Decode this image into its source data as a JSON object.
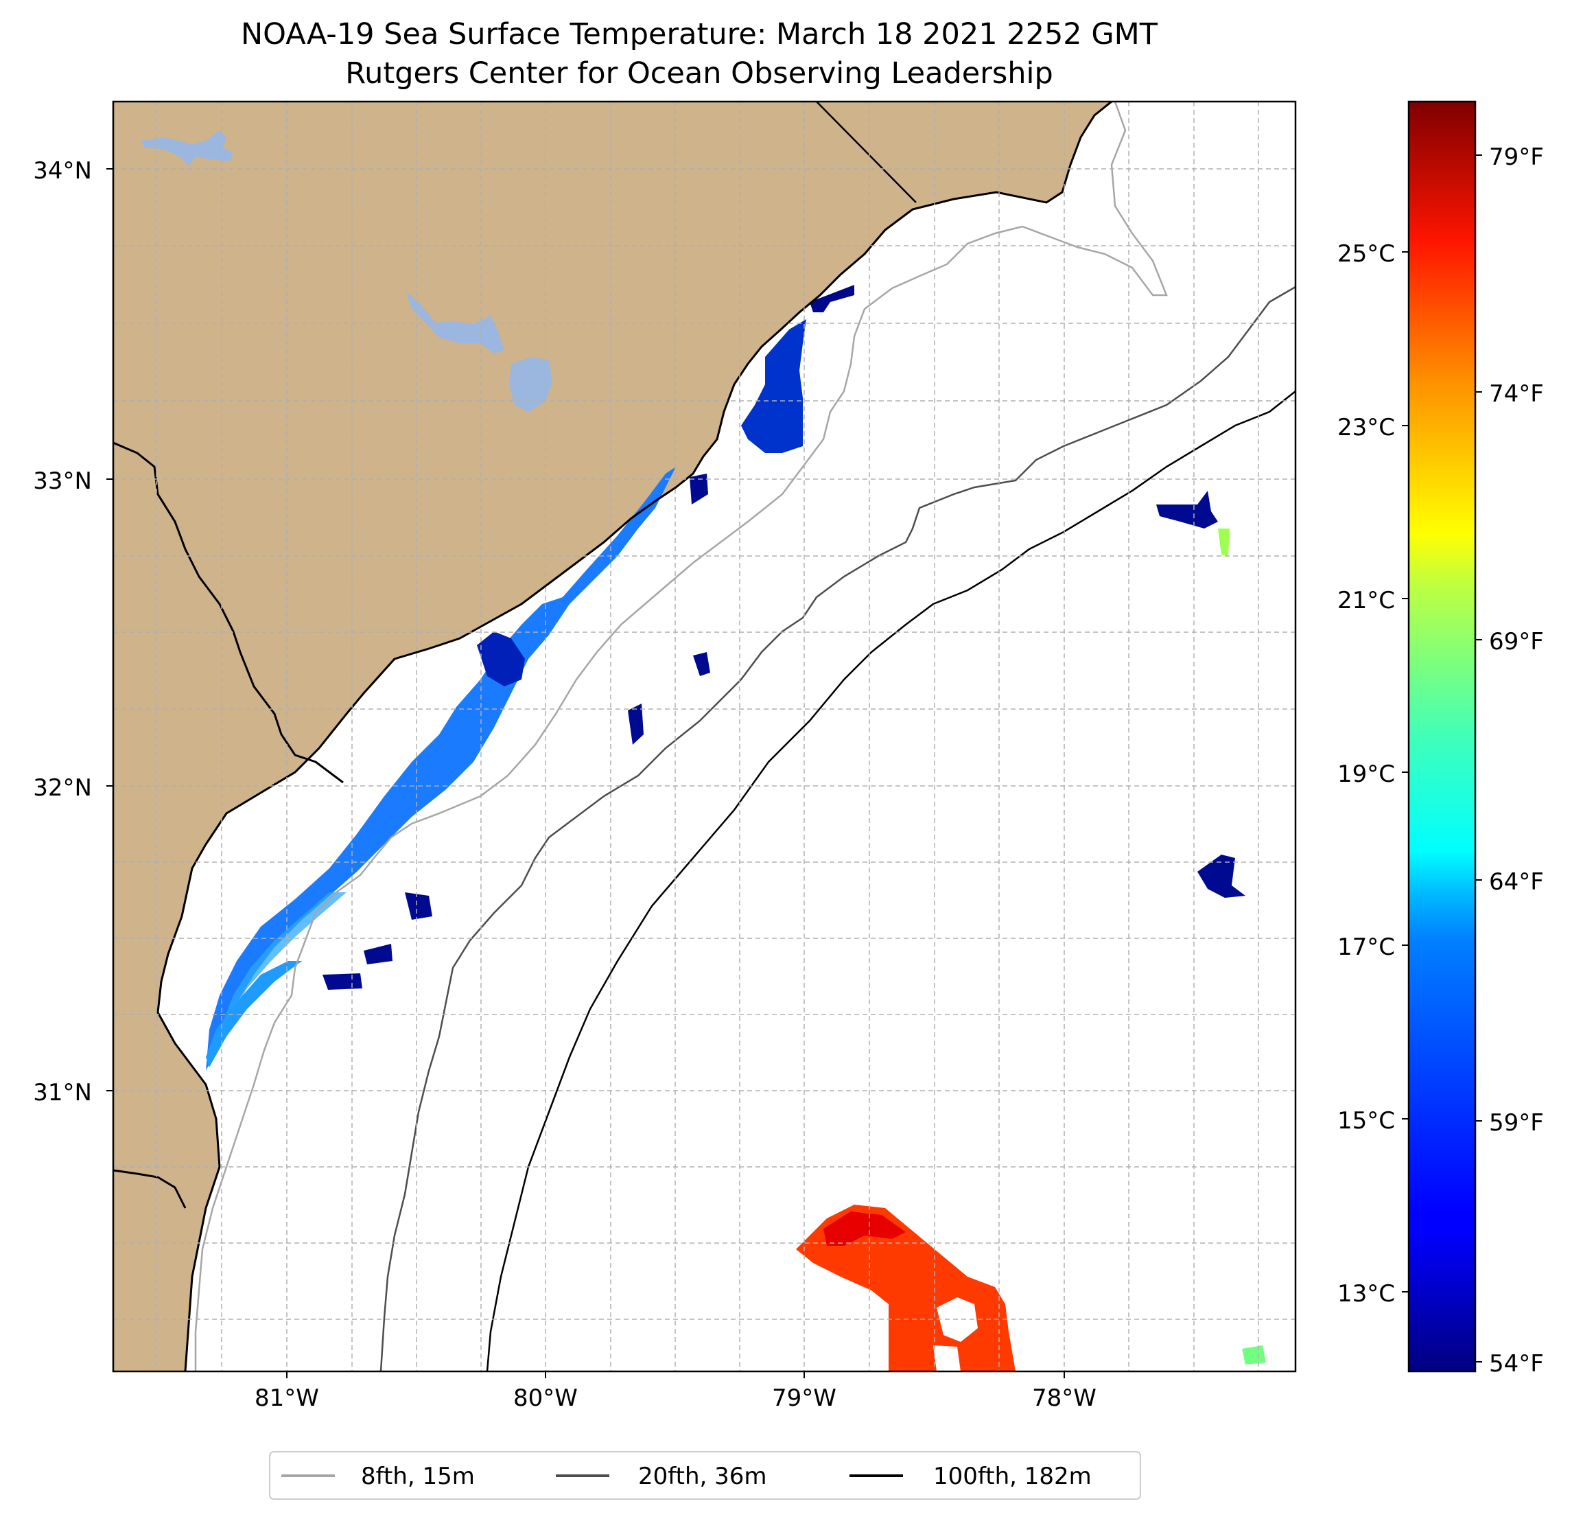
{
  "title": {
    "line1": "NOAA-19 Sea Surface Temperature: March 18 2021 2252 GMT",
    "line2": "Rutgers Center for Ocean Observing Leadership"
  },
  "map": {
    "lon_range": [
      -81.68,
      -77.1
    ],
    "lat_range": [
      30.07,
      34.22
    ],
    "lat_ticks": [
      {
        "value": 34,
        "label": "34°N"
      },
      {
        "value": 33,
        "label": "33°N"
      },
      {
        "value": 32,
        "label": "32°N"
      },
      {
        "value": 31,
        "label": "31°N"
      }
    ],
    "lon_ticks": [
      {
        "value": -81,
        "label": "81°W"
      },
      {
        "value": -80,
        "label": "80°W"
      },
      {
        "value": -79,
        "label": "79°W"
      },
      {
        "value": -78,
        "label": "78°W"
      }
    ],
    "grid": true,
    "land_color": "#cfb38a",
    "lake_color": "#9bb7e0",
    "ocean_color": "#ffffff"
  },
  "colorbar": {
    "colormap": "jet",
    "celsius_ticks": [
      {
        "value": 13,
        "label": "13°C"
      },
      {
        "value": 15,
        "label": "15°C"
      },
      {
        "value": 17,
        "label": "17°C"
      },
      {
        "value": 19,
        "label": "19°C"
      },
      {
        "value": 21,
        "label": "21°C"
      },
      {
        "value": 23,
        "label": "23°C"
      },
      {
        "value": 25,
        "label": "25°C"
      }
    ],
    "fahrenheit_ticks": [
      {
        "value": 54,
        "label": "54°F"
      },
      {
        "value": 59,
        "label": "59°F"
      },
      {
        "value": 64,
        "label": "64°F"
      },
      {
        "value": 69,
        "label": "69°F"
      },
      {
        "value": 74,
        "label": "74°F"
      },
      {
        "value": 79,
        "label": "79°F"
      }
    ]
  },
  "legend": {
    "placement": "bottom-center",
    "items": [
      {
        "label": "8fth, 15m",
        "color": "#a6a6a6"
      },
      {
        "label": "20fth, 36m",
        "color": "#4d4d4d"
      },
      {
        "label": "100fth, 182m",
        "color": "#000000"
      }
    ]
  }
}
